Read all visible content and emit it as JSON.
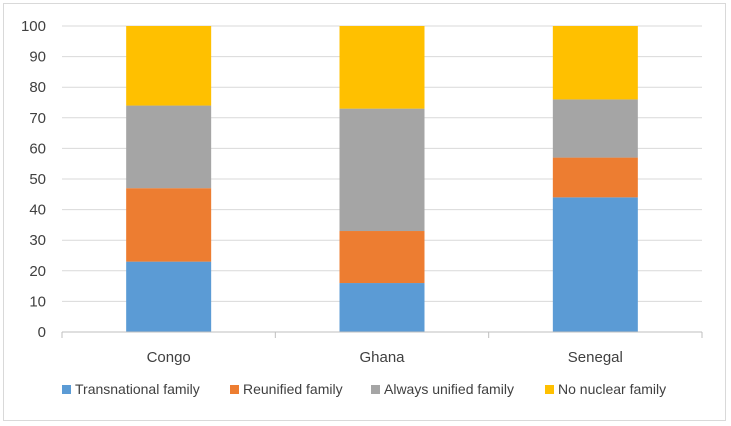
{
  "chart_data": {
    "type": "bar",
    "stacked": true,
    "categories": [
      "Congo",
      "Ghana",
      "Senegal"
    ],
    "series": [
      {
        "name": "Transnational family",
        "values": [
          23,
          16,
          44
        ],
        "color": "#5b9bd5"
      },
      {
        "name": "Reunified family",
        "values": [
          24,
          17,
          13
        ],
        "color": "#ed7d31"
      },
      {
        "name": "Always unified family",
        "values": [
          27,
          40,
          19
        ],
        "color": "#a5a5a5"
      },
      {
        "name": "No nuclear family",
        "values": [
          26,
          27,
          24
        ],
        "color": "#ffc000"
      }
    ],
    "title": "",
    "xlabel": "",
    "ylabel": "",
    "ylim": [
      0,
      100
    ],
    "yticks": [
      "0",
      "10",
      "20",
      "30",
      "40",
      "50",
      "60",
      "70",
      "80",
      "90",
      "100"
    ],
    "grid": true,
    "legend_position": "bottom"
  }
}
